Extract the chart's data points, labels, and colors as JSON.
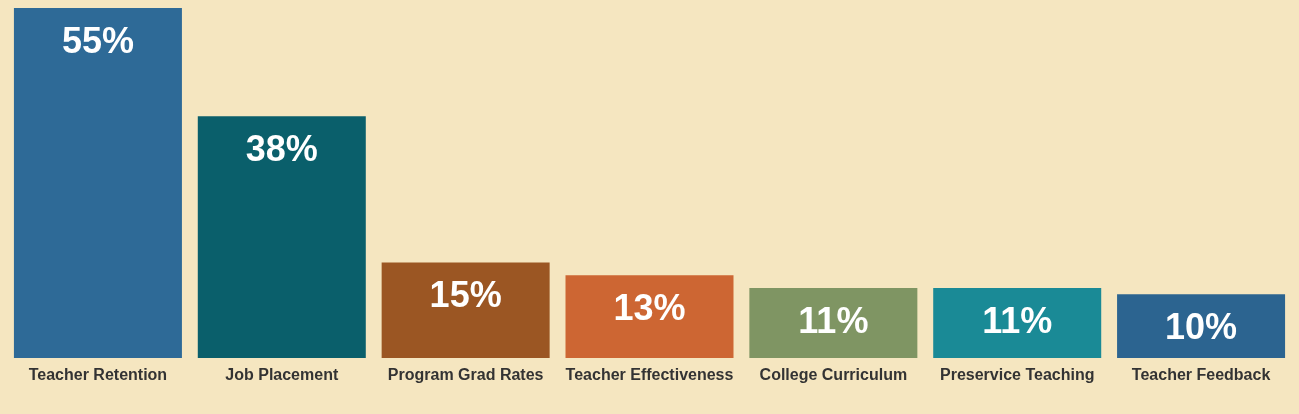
{
  "chart_data": {
    "type": "bar",
    "categories": [
      "Teacher Retention",
      "Job Placement",
      "Program Grad Rates",
      "Teacher Effectiveness",
      "College Curriculum",
      "Preservice Teaching",
      "Teacher Feedback"
    ],
    "values": [
      55,
      38,
      15,
      13,
      11,
      11,
      10
    ],
    "colors": [
      "#2e6a97",
      "#0a5f6b",
      "#9b5623",
      "#cd6633",
      "#7f9563",
      "#1a8a96",
      "#2c6490"
    ],
    "value_labels": [
      "55%",
      "38%",
      "15%",
      "13%",
      "11%",
      "11%",
      "10%"
    ]
  }
}
